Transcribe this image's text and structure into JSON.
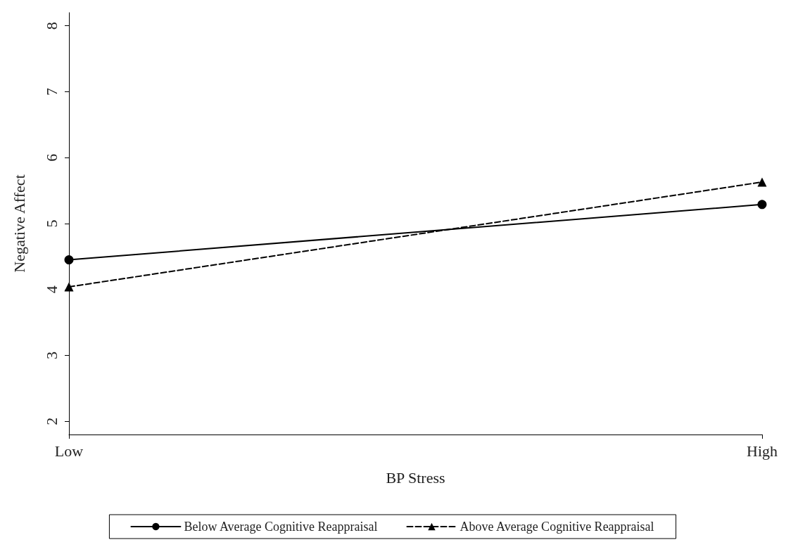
{
  "chart_data": {
    "type": "line",
    "xlabel": "BP Stress",
    "ylabel": "Negative Affect",
    "categories": [
      "Low",
      "High"
    ],
    "series": [
      {
        "name": "Below Average Cognitive Reappraisal",
        "color": "#000000",
        "values": [
          4.45,
          5.29
        ],
        "marker": "circle",
        "line_style": "solid"
      },
      {
        "name": "Above Average Cognitive Reappraisal",
        "color": "#000000",
        "values": [
          4.04,
          5.63
        ],
        "marker": "triangle",
        "line_style": "dashed"
      }
    ],
    "ylim": [
      1.8,
      8.2
    ],
    "yticks": [
      2,
      3,
      4,
      5,
      6,
      7,
      8
    ],
    "grid": false,
    "legend": "bottom"
  }
}
